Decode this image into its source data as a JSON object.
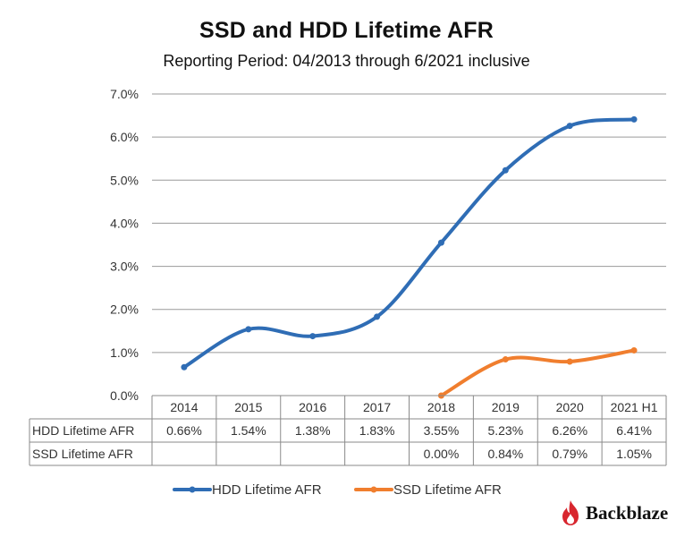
{
  "chart_data": {
    "type": "line",
    "title": "SSD and HDD Lifetime AFR",
    "subtitle": "Reporting Period: 04/2013 through 6/2021 inclusive",
    "categories": [
      "2014",
      "2015",
      "2016",
      "2017",
      "2018",
      "2019",
      "2020",
      "2021 H1"
    ],
    "yticks": [
      "0.0%",
      "1.0%",
      "2.0%",
      "3.0%",
      "4.0%",
      "5.0%",
      "6.0%",
      "7.0%"
    ],
    "ylim": [
      0,
      7
    ],
    "grid": true,
    "legend_position": "bottom",
    "series": [
      {
        "name": "HDD Lifetime AFR",
        "color": "#2F6DB5",
        "values": [
          0.66,
          1.54,
          1.38,
          1.83,
          3.55,
          5.23,
          6.26,
          6.41
        ],
        "labels": [
          "0.66%",
          "1.54%",
          "1.38%",
          "1.83%",
          "3.55%",
          "5.23%",
          "6.26%",
          "6.41%"
        ]
      },
      {
        "name": "SSD Lifetime AFR",
        "color": "#F07E2E",
        "values": [
          null,
          null,
          null,
          null,
          0.0,
          0.84,
          0.79,
          1.05
        ],
        "labels": [
          "",
          "",
          "",
          "",
          "0.00%",
          "0.84%",
          "0.79%",
          "1.05%"
        ]
      }
    ]
  },
  "brand": {
    "name": "Backblaze",
    "icon": "flame-icon"
  }
}
